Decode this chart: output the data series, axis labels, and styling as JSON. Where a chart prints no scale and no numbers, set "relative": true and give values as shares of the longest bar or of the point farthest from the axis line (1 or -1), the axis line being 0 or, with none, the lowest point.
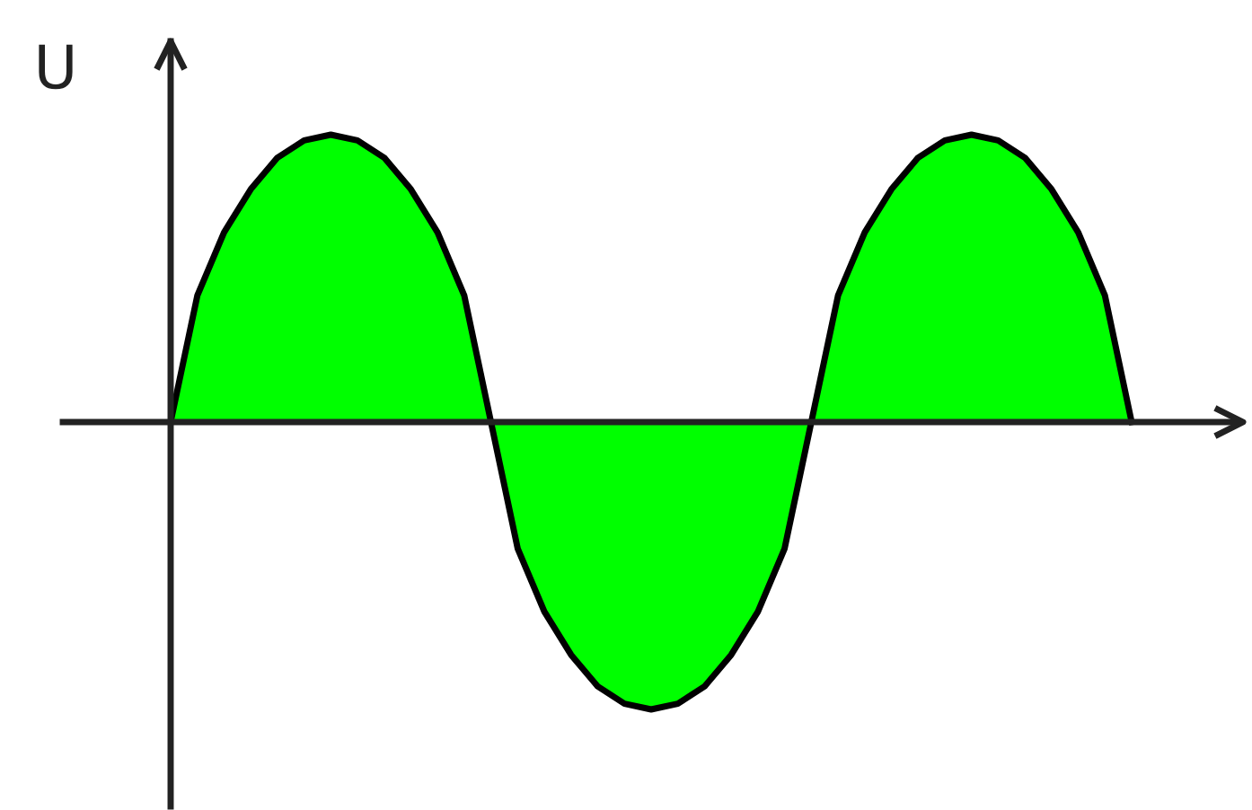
{
  "chart_data": {
    "type": "area",
    "ylabel": "U",
    "relative": true,
    "categories": [
      null,
      null,
      null,
      null,
      null,
      null,
      null,
      null,
      null,
      null,
      null,
      null,
      null,
      null,
      null,
      null,
      null,
      null,
      null,
      null,
      null,
      null,
      null,
      null,
      null,
      null,
      null,
      null,
      null,
      null,
      null,
      null,
      null,
      null,
      null,
      null,
      null
    ],
    "series": [
      {
        "color": "#00ff00",
        "values": [
          0,
          0.44,
          0.66,
          0.81,
          0.92,
          0.98,
          1,
          0.98,
          0.92,
          0.81,
          0.66,
          0.44,
          0,
          -0.44,
          -0.66,
          -0.81,
          -0.92,
          -0.98,
          -1,
          -0.98,
          -0.92,
          -0.81,
          -0.66,
          -0.44,
          0,
          0.44,
          0.66,
          0.81,
          0.92,
          0.98,
          1,
          0.98,
          0.92,
          0.81,
          0.66,
          0.44,
          0
        ]
      }
    ]
  }
}
